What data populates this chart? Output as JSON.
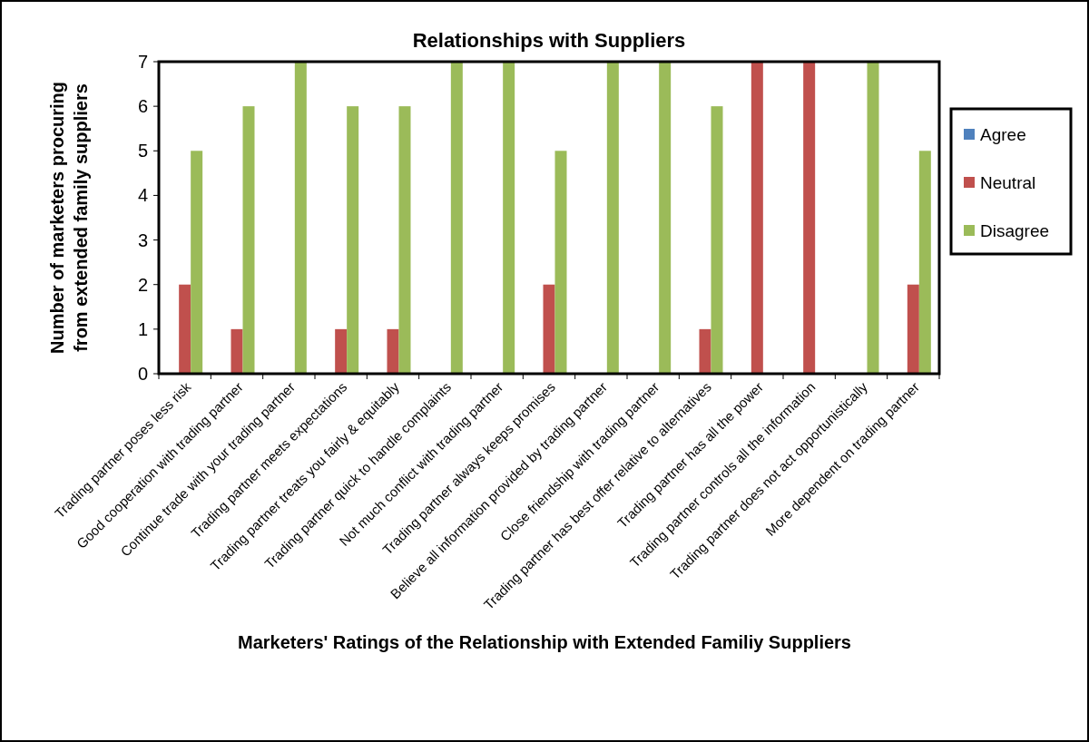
{
  "chart_data": {
    "type": "bar",
    "title": "Relationships with Suppliers",
    "xlabel": "Marketers' Ratings of the Relationship with Extended Familiy Suppliers",
    "ylabel": "Number of marketers procuring from extended family suppliers",
    "categories": [
      "Trading partner poses less risk",
      "Good cooperation with trading partner",
      "Continue trade with your trading partner",
      "Trading partner meets expectations",
      "Trading partner treats you fairly & equitably",
      "Trading partner quick to handle complaints",
      "Not much conflict with trading partner",
      "Trading partner always keeps promises",
      "Believe all information provided by trading partner",
      "Close friendship with trading partner",
      "Trading partner has best offer relative to alternatives",
      "Trading partner has all the power",
      "Trading partner controls all the information",
      "Trading partner does not act opportunistically",
      "More dependent on trading partner"
    ],
    "series": [
      {
        "name": "Agree",
        "color": "#4f81bd",
        "values": [
          0,
          0,
          0,
          0,
          0,
          0,
          0,
          0,
          0,
          0,
          0,
          0,
          0,
          0,
          0
        ]
      },
      {
        "name": "Neutral",
        "color": "#c0504d",
        "values": [
          2,
          1,
          0,
          1,
          1,
          0,
          0,
          2,
          0,
          0,
          1,
          7,
          7,
          0,
          2
        ]
      },
      {
        "name": "Disagree",
        "color": "#9bbb59",
        "values": [
          5,
          6,
          7,
          6,
          6,
          7,
          7,
          5,
          7,
          7,
          6,
          0,
          0,
          7,
          5
        ]
      }
    ],
    "ylim": [
      0,
      7
    ],
    "yticks": [
      0,
      1,
      2,
      3,
      4,
      5,
      6,
      7
    ],
    "legend": "right"
  }
}
